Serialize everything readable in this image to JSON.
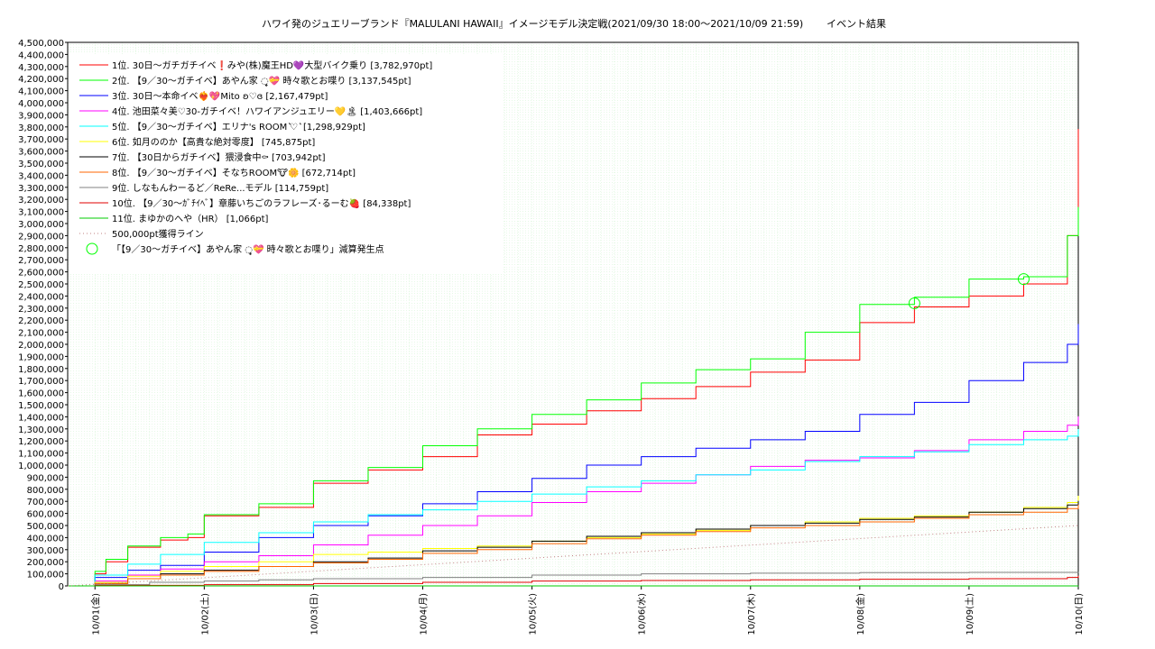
{
  "chart_data": {
    "type": "line",
    "title": "ハワイ発のジュエリーブランド『MALULANI HAWAII』イメージモデル決定戦(2021/09/30 18:00～2021/10/09 21:59)",
    "subtitle": "イベント結果",
    "xlabel": "",
    "ylabel": "",
    "ylim": [
      0,
      4500000
    ],
    "xlim": [
      "2021-09-30T18:00",
      "2021-10-10T00:00"
    ],
    "grid": true,
    "legend_position": "top-left",
    "x_tick_labels": [
      "10/01(金)",
      "10/02(土)",
      "10/03(日)",
      "10/04(月)",
      "10/05(火)",
      "10/06(水)",
      "10/07(木)",
      "10/08(金)",
      "10/09(土)",
      "10/10(日)"
    ],
    "y_tick_labels": [
      "0",
      "100,000",
      "200,000",
      "300,000",
      "400,000",
      "500,000",
      "600,000",
      "700,000",
      "800,000",
      "900,000",
      "1,000,000",
      "1,100,000",
      "1,200,000",
      "1,300,000",
      "1,400,000",
      "1,500,000",
      "1,600,000",
      "1,700,000",
      "1,800,000",
      "1,900,000",
      "2,000,000",
      "2,100,000",
      "2,200,000",
      "2,300,000",
      "2,400,000",
      "2,500,000",
      "2,600,000",
      "2,700,000",
      "2,800,000",
      "2,900,000",
      "3,000,000",
      "3,100,000",
      "3,200,000",
      "3,300,000",
      "3,400,000",
      "3,500,000",
      "3,600,000",
      "3,700,000",
      "3,800,000",
      "3,900,000",
      "4,000,000",
      "4,100,000",
      "4,200,000",
      "4,300,000",
      "4,400,000",
      "4,500,000"
    ],
    "x_time_units": "days since 10/01 00:00",
    "series": [
      {
        "name": "1位. 30日〜ガチガチイベ❗️みや(株)魔王HD💜大型バイク乗り [3,782,970pt]",
        "color": "#ff0000",
        "style": "step",
        "x": [
          -0.25,
          0,
          0.1,
          0.3,
          0.6,
          0.85,
          1.0,
          1.5,
          2.0,
          2.5,
          3.0,
          3.5,
          4.0,
          4.5,
          5.0,
          5.5,
          6.0,
          6.5,
          7.0,
          7.5,
          8.0,
          8.5,
          8.9,
          9.0
        ],
        "y": [
          0,
          100000,
          200000,
          320000,
          380000,
          400000,
          580000,
          650000,
          850000,
          960000,
          1070000,
          1250000,
          1340000,
          1450000,
          1550000,
          1650000,
          1770000,
          1870000,
          2180000,
          2310000,
          2400000,
          2500000,
          2900000,
          3782970
        ]
      },
      {
        "name": "2位. 【9／30〜ガチイベ】あやん家 ◌̥̥̥̥💝 時々歌とお喋り [3,137,545pt]",
        "color": "#00ff00",
        "style": "step",
        "x": [
          -0.25,
          0,
          0.1,
          0.3,
          0.6,
          0.85,
          1.0,
          1.5,
          2.0,
          2.5,
          3.0,
          3.5,
          4.0,
          4.5,
          5.0,
          5.5,
          6.0,
          6.5,
          7.0,
          7.5,
          8.0,
          8.5,
          8.9,
          9.0
        ],
        "y": [
          0,
          120000,
          220000,
          330000,
          400000,
          430000,
          590000,
          680000,
          870000,
          980000,
          1160000,
          1300000,
          1420000,
          1540000,
          1680000,
          1790000,
          1880000,
          2100000,
          2330000,
          2390000,
          2540000,
          2560000,
          2900000,
          3137545
        ]
      },
      {
        "name": "3位. 30日〜本命イベ❤️‍🔥💖Mito ʚ♡ɞ [2,167,479pt]",
        "color": "#0000ff",
        "style": "step",
        "x": [
          -0.25,
          0,
          0.3,
          0.6,
          1.0,
          1.5,
          2.0,
          2.5,
          3.0,
          3.5,
          4.0,
          4.5,
          5.0,
          5.5,
          6.0,
          6.5,
          7.0,
          7.5,
          8.0,
          8.5,
          8.9,
          9.0
        ],
        "y": [
          0,
          70000,
          130000,
          170000,
          280000,
          400000,
          500000,
          580000,
          680000,
          780000,
          890000,
          1000000,
          1070000,
          1140000,
          1210000,
          1280000,
          1420000,
          1520000,
          1700000,
          1850000,
          2000000,
          2167479
        ]
      },
      {
        "name": "4位. 池田菜々美♡30-ガチイベ！ハワイアンジュエリー💛🏝  [1,403,666pt]",
        "color": "#ff00ff",
        "style": "step",
        "x": [
          -0.25,
          0,
          0.3,
          0.6,
          1.0,
          1.5,
          2.0,
          2.5,
          3.0,
          3.5,
          4.0,
          4.5,
          5.0,
          5.5,
          6.0,
          6.5,
          7.0,
          7.5,
          8.0,
          8.5,
          8.9,
          9.0
        ],
        "y": [
          0,
          40000,
          90000,
          140000,
          200000,
          250000,
          340000,
          420000,
          500000,
          580000,
          690000,
          780000,
          850000,
          920000,
          990000,
          1040000,
          1060000,
          1120000,
          1210000,
          1280000,
          1330000,
          1403666
        ]
      },
      {
        "name": "5位. 【9／30〜ガチイベ】エリナ's ROOM ͛♡ ͛ [1,298,929pt]",
        "color": "#00ffff",
        "style": "step",
        "x": [
          -0.25,
          0,
          0.3,
          0.6,
          1.0,
          1.5,
          2.0,
          2.5,
          3.0,
          3.5,
          4.0,
          4.5,
          5.0,
          5.5,
          6.0,
          6.5,
          7.0,
          7.5,
          8.0,
          8.5,
          8.9,
          9.0
        ],
        "y": [
          0,
          90000,
          180000,
          260000,
          360000,
          440000,
          530000,
          590000,
          630000,
          700000,
          760000,
          820000,
          870000,
          920000,
          960000,
          1030000,
          1070000,
          1110000,
          1170000,
          1210000,
          1240000,
          1298929
        ]
      },
      {
        "name": "6位. 如月ののか【高貴な絶対零度】 [745,875pt]",
        "color": "#ffff00",
        "style": "step",
        "x": [
          -0.25,
          0,
          0.3,
          0.6,
          1.0,
          1.5,
          2.0,
          2.5,
          3.0,
          3.5,
          4.0,
          4.5,
          5.0,
          5.5,
          6.0,
          6.5,
          7.0,
          7.5,
          8.0,
          8.5,
          8.9,
          9.0
        ],
        "y": [
          0,
          30000,
          80000,
          120000,
          160000,
          200000,
          260000,
          280000,
          310000,
          330000,
          370000,
          400000,
          430000,
          460000,
          500000,
          530000,
          560000,
          580000,
          610000,
          650000,
          690000,
          745875
        ]
      },
      {
        "name": "7位. 【30日からガチイベ】猥浸食中⚰ [703,942pt]",
        "color": "#000000",
        "style": "step",
        "x": [
          -0.25,
          0,
          0.3,
          0.6,
          1.0,
          1.5,
          2.0,
          2.5,
          3.0,
          3.5,
          4.0,
          4.5,
          5.0,
          5.5,
          6.0,
          6.5,
          7.0,
          7.5,
          8.0,
          8.5,
          8.9,
          9.0
        ],
        "y": [
          0,
          20000,
          60000,
          100000,
          130000,
          160000,
          200000,
          230000,
          290000,
          320000,
          370000,
          410000,
          440000,
          470000,
          500000,
          520000,
          550000,
          570000,
          610000,
          640000,
          670000,
          703942
        ]
      },
      {
        "name": "8位. 【9／30〜ガチイベ】そなちROOM🐮🌼 [672,714pt]",
        "color": "#ff6600",
        "style": "step",
        "x": [
          -0.25,
          0,
          0.3,
          0.6,
          1.0,
          1.5,
          2.0,
          2.5,
          3.0,
          3.5,
          4.0,
          4.5,
          5.0,
          5.5,
          6.0,
          6.5,
          7.0,
          7.5,
          8.0,
          8.5,
          8.9,
          9.0
        ],
        "y": [
          0,
          20000,
          60000,
          90000,
          120000,
          160000,
          190000,
          220000,
          270000,
          300000,
          350000,
          390000,
          420000,
          450000,
          480000,
          500000,
          530000,
          560000,
          590000,
          610000,
          640000,
          672714
        ]
      },
      {
        "name": "9位. しなもんわーるど／ReRe...モデル [114,759pt]",
        "color": "#808080",
        "style": "step",
        "x": [
          -0.25,
          0,
          0.5,
          1.0,
          1.5,
          2.0,
          3.0,
          4.0,
          5.0,
          6.0,
          7.0,
          8.0,
          9.0
        ],
        "y": [
          0,
          10000,
          30000,
          40000,
          50000,
          60000,
          70000,
          90000,
          100000,
          105000,
          110000,
          112000,
          114759
        ]
      },
      {
        "name": "10位. 【9／30〜ｶﾞﾁｲﾍﾞ】章藤いちごのラフレーズ･るーむ🍓 [84,338pt]",
        "color": "#e00000",
        "style": "step",
        "x": [
          -0.25,
          0,
          1.0,
          2.0,
          3.0,
          4.0,
          5.0,
          6.0,
          7.0,
          8.0,
          8.9,
          9.0
        ],
        "y": [
          0,
          5000,
          10000,
          20000,
          30000,
          40000,
          45000,
          50000,
          55000,
          60000,
          70000,
          84338
        ]
      },
      {
        "name": "11位. まゆかのへや（HR） [1,066pt]",
        "color": "#00cc00",
        "style": "step",
        "x": [
          -0.25,
          9.0
        ],
        "y": [
          0,
          1066
        ]
      },
      {
        "name": "500,000pt獲得ライン",
        "color": "#c08080",
        "style": "dotted",
        "x": [
          -0.25,
          9.0
        ],
        "y": [
          0,
          500000
        ]
      }
    ],
    "markers": {
      "name": "「【9／30〜ガチイベ】あやん家 ◌̥̥̥̥💝 時々歌とお喋り」減算発生点",
      "color": "#00ff00",
      "points": [
        {
          "x": 7.5,
          "y": 2340000
        },
        {
          "x": 8.5,
          "y": 2540000
        }
      ]
    }
  }
}
